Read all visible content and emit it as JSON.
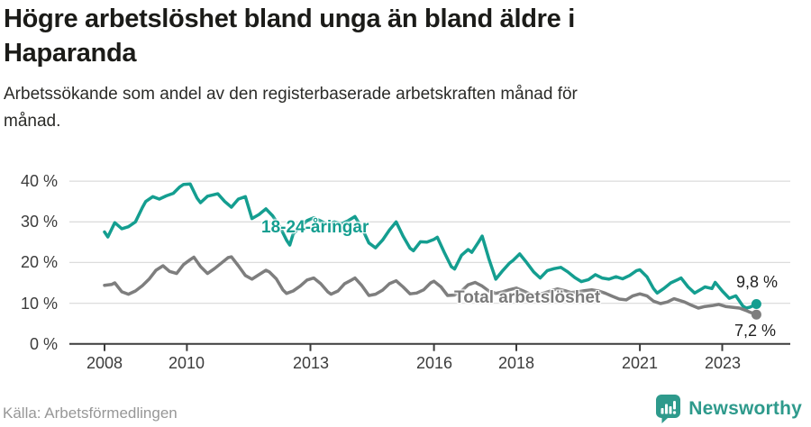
{
  "header": {
    "title_lines": [
      "Högre arbetslöshet bland unga än bland äldre i",
      "Haparanda"
    ],
    "subtitle_lines": [
      "Arbetssökande som andel av den registerbaserade arbetskraften månad för",
      "månad."
    ]
  },
  "footer": {
    "source": "Källa: Arbetsförmedlingen",
    "brand": "Newsworthy"
  },
  "colors": {
    "young_line": "#149E90",
    "total_line": "#7E7E7E",
    "grid": "#DCDCDC",
    "axis": "#3C3C3C",
    "title_text": "#1B1B18",
    "brand_teal": "#2E9A8C"
  },
  "chart_data": {
    "type": "line",
    "title": "Högre arbetslöshet bland unga än bland äldre i Haparanda",
    "subtitle": "Arbetssökande som andel av den registerbaserade arbetskraften månad för månad.",
    "xlabel": "",
    "ylabel": "",
    "grid": true,
    "x_axis": {
      "range": [
        2007.15,
        2024.65
      ],
      "ticks": [
        {
          "value": 2008,
          "label": "2008"
        },
        {
          "value": 2010,
          "label": "2010"
        },
        {
          "value": 2013,
          "label": "2013"
        },
        {
          "value": 2016,
          "label": "2016"
        },
        {
          "value": 2018,
          "label": "2018"
        },
        {
          "value": 2021,
          "label": "2021"
        },
        {
          "value": 2023,
          "label": "2023"
        }
      ]
    },
    "y_axis": {
      "range": [
        0,
        43
      ],
      "ticks": [
        {
          "value": 0,
          "label": "0 %"
        },
        {
          "value": 10,
          "label": "10 %"
        },
        {
          "value": 20,
          "label": "20 %"
        },
        {
          "value": 30,
          "label": "30 %"
        },
        {
          "value": 40,
          "label": "40 %"
        }
      ]
    },
    "series": [
      {
        "name": "18-24-åringar",
        "color": "#149E90",
        "end_label": "9,8 %",
        "points": [
          [
            2008.0,
            27.5
          ],
          [
            2008.08,
            26.3
          ],
          [
            2008.25,
            29.8
          ],
          [
            2008.42,
            28.3
          ],
          [
            2008.58,
            28.8
          ],
          [
            2008.75,
            30.0
          ],
          [
            2008.92,
            33.5
          ],
          [
            2009.0,
            35.0
          ],
          [
            2009.17,
            36.2
          ],
          [
            2009.33,
            35.6
          ],
          [
            2009.5,
            36.4
          ],
          [
            2009.67,
            37.0
          ],
          [
            2009.83,
            38.6
          ],
          [
            2009.92,
            39.2
          ],
          [
            2010.08,
            39.3
          ],
          [
            2010.25,
            35.8
          ],
          [
            2010.33,
            34.7
          ],
          [
            2010.5,
            36.3
          ],
          [
            2010.75,
            36.9
          ],
          [
            2010.92,
            35.0
          ],
          [
            2011.08,
            33.6
          ],
          [
            2011.25,
            35.6
          ],
          [
            2011.42,
            36.2
          ],
          [
            2011.58,
            30.8
          ],
          [
            2011.75,
            31.8
          ],
          [
            2011.92,
            33.2
          ],
          [
            2012.08,
            31.5
          ],
          [
            2012.25,
            29.0
          ],
          [
            2012.42,
            25.5
          ],
          [
            2012.5,
            24.3
          ],
          [
            2012.58,
            27.0
          ],
          [
            2012.75,
            28.8
          ],
          [
            2012.92,
            30.3
          ],
          [
            2013.08,
            31.0
          ],
          [
            2013.25,
            30.2
          ],
          [
            2013.42,
            29.3
          ],
          [
            2013.58,
            30.0
          ],
          [
            2013.75,
            29.5
          ],
          [
            2013.92,
            30.3
          ],
          [
            2014.08,
            31.3
          ],
          [
            2014.25,
            28.5
          ],
          [
            2014.42,
            24.8
          ],
          [
            2014.58,
            23.6
          ],
          [
            2014.75,
            25.5
          ],
          [
            2014.92,
            28.0
          ],
          [
            2015.08,
            30.0
          ],
          [
            2015.25,
            26.5
          ],
          [
            2015.42,
            23.5
          ],
          [
            2015.5,
            22.9
          ],
          [
            2015.67,
            25.1
          ],
          [
            2015.83,
            25.0
          ],
          [
            2016.0,
            25.7
          ],
          [
            2016.08,
            26.2
          ],
          [
            2016.25,
            22.5
          ],
          [
            2016.42,
            19.0
          ],
          [
            2016.5,
            18.4
          ],
          [
            2016.67,
            21.8
          ],
          [
            2016.83,
            23.2
          ],
          [
            2016.92,
            22.5
          ],
          [
            2017.08,
            25.0
          ],
          [
            2017.17,
            26.5
          ],
          [
            2017.33,
            21.0
          ],
          [
            2017.5,
            15.9
          ],
          [
            2017.67,
            18.0
          ],
          [
            2017.83,
            19.8
          ],
          [
            2017.92,
            20.5
          ],
          [
            2018.08,
            22.1
          ],
          [
            2018.25,
            20.0
          ],
          [
            2018.42,
            17.7
          ],
          [
            2018.58,
            16.2
          ],
          [
            2018.75,
            18.0
          ],
          [
            2018.92,
            18.5
          ],
          [
            2019.08,
            18.8
          ],
          [
            2019.25,
            17.7
          ],
          [
            2019.42,
            16.3
          ],
          [
            2019.58,
            15.3
          ],
          [
            2019.75,
            15.8
          ],
          [
            2019.92,
            17.0
          ],
          [
            2020.08,
            16.2
          ],
          [
            2020.25,
            15.9
          ],
          [
            2020.42,
            16.5
          ],
          [
            2020.58,
            16.0
          ],
          [
            2020.75,
            16.8
          ],
          [
            2020.92,
            18.0
          ],
          [
            2021.0,
            18.2
          ],
          [
            2021.17,
            16.5
          ],
          [
            2021.33,
            13.6
          ],
          [
            2021.42,
            12.5
          ],
          [
            2021.58,
            13.6
          ],
          [
            2021.75,
            15.0
          ],
          [
            2021.92,
            15.8
          ],
          [
            2022.0,
            16.2
          ],
          [
            2022.17,
            14.0
          ],
          [
            2022.33,
            12.5
          ],
          [
            2022.5,
            13.5
          ],
          [
            2022.58,
            14.0
          ],
          [
            2022.75,
            13.6
          ],
          [
            2022.83,
            15.1
          ],
          [
            2023.0,
            13.0
          ],
          [
            2023.17,
            11.2
          ],
          [
            2023.33,
            11.8
          ],
          [
            2023.5,
            9.3
          ],
          [
            2023.58,
            8.8
          ],
          [
            2023.67,
            9.0
          ],
          [
            2023.83,
            9.8
          ]
        ]
      },
      {
        "name": "Total arbetslöshet",
        "color": "#7E7E7E",
        "end_label": "7,2 %",
        "points": [
          [
            2008.0,
            14.4
          ],
          [
            2008.17,
            14.6
          ],
          [
            2008.25,
            15.0
          ],
          [
            2008.42,
            12.8
          ],
          [
            2008.58,
            12.2
          ],
          [
            2008.75,
            13.0
          ],
          [
            2008.92,
            14.3
          ],
          [
            2009.08,
            15.9
          ],
          [
            2009.25,
            18.1
          ],
          [
            2009.42,
            19.2
          ],
          [
            2009.58,
            17.8
          ],
          [
            2009.75,
            17.3
          ],
          [
            2009.92,
            19.5
          ],
          [
            2010.08,
            20.7
          ],
          [
            2010.17,
            21.3
          ],
          [
            2010.33,
            19.0
          ],
          [
            2010.5,
            17.3
          ],
          [
            2010.67,
            18.5
          ],
          [
            2010.83,
            19.8
          ],
          [
            2011.0,
            21.2
          ],
          [
            2011.08,
            21.4
          ],
          [
            2011.25,
            19.2
          ],
          [
            2011.42,
            16.8
          ],
          [
            2011.58,
            15.9
          ],
          [
            2011.75,
            17.0
          ],
          [
            2011.92,
            18.1
          ],
          [
            2012.0,
            17.7
          ],
          [
            2012.17,
            16.0
          ],
          [
            2012.33,
            13.3
          ],
          [
            2012.42,
            12.4
          ],
          [
            2012.58,
            13.0
          ],
          [
            2012.75,
            14.2
          ],
          [
            2012.92,
            15.7
          ],
          [
            2013.08,
            16.2
          ],
          [
            2013.25,
            14.8
          ],
          [
            2013.42,
            12.8
          ],
          [
            2013.5,
            12.2
          ],
          [
            2013.67,
            13.0
          ],
          [
            2013.83,
            14.8
          ],
          [
            2014.0,
            15.7
          ],
          [
            2014.08,
            16.2
          ],
          [
            2014.25,
            14.3
          ],
          [
            2014.42,
            11.9
          ],
          [
            2014.58,
            12.2
          ],
          [
            2014.75,
            13.2
          ],
          [
            2014.92,
            14.8
          ],
          [
            2015.08,
            15.5
          ],
          [
            2015.25,
            14.0
          ],
          [
            2015.42,
            12.3
          ],
          [
            2015.58,
            12.5
          ],
          [
            2015.75,
            13.3
          ],
          [
            2015.92,
            15.0
          ],
          [
            2016.0,
            15.4
          ],
          [
            2016.17,
            14.0
          ],
          [
            2016.33,
            11.9
          ],
          [
            2016.5,
            12.0
          ],
          [
            2016.67,
            13.0
          ],
          [
            2016.83,
            14.5
          ],
          [
            2017.0,
            15.1
          ],
          [
            2017.17,
            14.2
          ],
          [
            2017.33,
            13.0
          ],
          [
            2017.5,
            12.4
          ],
          [
            2017.67,
            12.8
          ],
          [
            2017.83,
            13.3
          ],
          [
            2018.0,
            13.7
          ],
          [
            2018.17,
            13.0
          ],
          [
            2018.33,
            12.3
          ],
          [
            2018.5,
            12.0
          ],
          [
            2018.67,
            12.5
          ],
          [
            2018.83,
            13.0
          ],
          [
            2019.0,
            13.5
          ],
          [
            2019.17,
            13.1
          ],
          [
            2019.33,
            12.6
          ],
          [
            2019.5,
            12.8
          ],
          [
            2019.67,
            13.1
          ],
          [
            2019.83,
            13.3
          ],
          [
            2020.0,
            13.0
          ],
          [
            2020.17,
            12.4
          ],
          [
            2020.33,
            11.7
          ],
          [
            2020.5,
            11.0
          ],
          [
            2020.67,
            10.8
          ],
          [
            2020.83,
            11.8
          ],
          [
            2021.0,
            12.3
          ],
          [
            2021.17,
            11.8
          ],
          [
            2021.33,
            10.5
          ],
          [
            2021.5,
            9.9
          ],
          [
            2021.67,
            10.3
          ],
          [
            2021.83,
            11.1
          ],
          [
            2022.08,
            10.3
          ],
          [
            2022.25,
            9.5
          ],
          [
            2022.42,
            8.8
          ],
          [
            2022.58,
            9.2
          ],
          [
            2022.75,
            9.4
          ],
          [
            2022.92,
            9.7
          ],
          [
            2023.08,
            9.2
          ],
          [
            2023.25,
            9.0
          ],
          [
            2023.42,
            8.8
          ],
          [
            2023.58,
            8.2
          ],
          [
            2023.67,
            7.8
          ],
          [
            2023.83,
            7.2
          ]
        ]
      }
    ],
    "legend_position": "inline-labels"
  }
}
